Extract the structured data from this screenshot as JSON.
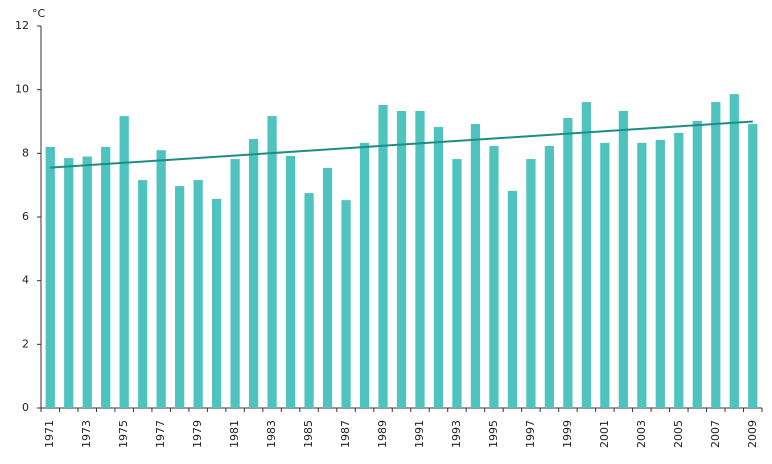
{
  "chart_data": {
    "type": "bar",
    "unit": "°C",
    "categories": [
      "1971",
      null,
      "1973",
      null,
      "1975",
      null,
      "1977",
      null,
      "1979",
      null,
      "1981",
      null,
      "1983",
      null,
      "1985",
      null,
      "1987",
      null,
      "1989",
      null,
      "1991",
      null,
      "1993",
      null,
      "1995",
      null,
      "1997",
      null,
      "1999",
      null,
      "2001",
      null,
      "2003",
      null,
      "2005",
      null,
      "2007",
      null,
      "2009"
    ],
    "values": [
      8.2,
      7.85,
      7.9,
      8.2,
      9.17,
      7.16,
      8.1,
      6.97,
      7.16,
      6.57,
      7.82,
      8.45,
      9.17,
      7.92,
      6.75,
      7.54,
      6.53,
      8.33,
      9.52,
      9.33,
      9.33,
      8.83,
      7.82,
      8.92,
      8.23,
      6.82,
      7.82,
      8.23,
      9.11,
      9.61,
      8.33,
      9.33,
      8.33,
      8.42,
      8.64,
      9.02,
      9.61,
      9.86,
      8.92
    ],
    "color": "#4fc3bd",
    "trend": {
      "values": [
        7.55,
        9.0
      ],
      "color": "#1e8c87"
    },
    "ylim": [
      0,
      12
    ],
    "yticks": [
      0,
      2,
      4,
      6,
      8,
      10,
      12
    ],
    "grid": false
  }
}
